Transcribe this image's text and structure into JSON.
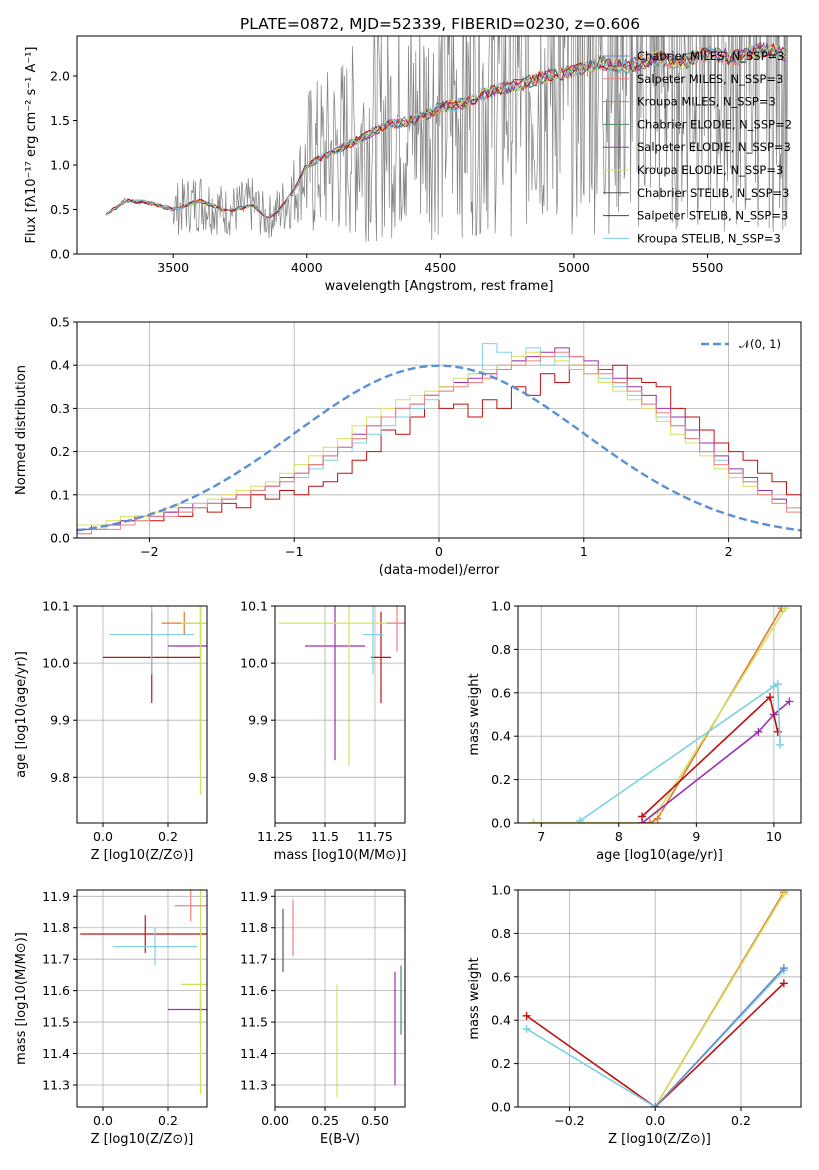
{
  "figure": {
    "title": "PLATE=0872, MJD=52339, FIBERID=0230, z=0.606"
  },
  "chart_data": [
    {
      "id": "spectrum",
      "type": "line",
      "xlabel": "wavelength [Angstrom, rest frame]",
      "ylabel": "Flux [fλ10⁻¹⁷ erg cm⁻² s⁻¹ A⁻¹]",
      "xlim": [
        3140,
        5850
      ],
      "ylim": [
        0,
        2.45
      ],
      "xticks": [
        3500,
        4000,
        4500,
        5000,
        5500
      ],
      "yticks": [
        0.0,
        0.5,
        1.0,
        1.5,
        2.0
      ],
      "grid": false,
      "legend_position": "top-right",
      "data_line": {
        "color": "#808080",
        "x_start": 3250,
        "x_end": 5800,
        "note_style": "noisy observed spectrum"
      },
      "model_continuum": {
        "x": [
          3250,
          3300,
          3320,
          3400,
          3500,
          3600,
          3700,
          3800,
          3850,
          3900,
          3950,
          4000,
          4100,
          4200,
          4300,
          4400,
          4500,
          4600,
          4700,
          4800,
          4900,
          5000,
          5100,
          5200,
          5300,
          5400,
          5500,
          5600,
          5700,
          5800
        ],
        "y": [
          0.45,
          0.55,
          0.6,
          0.58,
          0.5,
          0.6,
          0.48,
          0.55,
          0.4,
          0.5,
          0.7,
          1.0,
          1.15,
          1.3,
          1.45,
          1.5,
          1.65,
          1.7,
          1.85,
          1.9,
          2.0,
          2.05,
          2.15,
          2.1,
          2.2,
          2.15,
          2.25,
          2.2,
          2.3,
          2.25
        ]
      },
      "series": [
        {
          "name": "Chabrier MILES, N_SSP=3",
          "color": "#6b8cc7"
        },
        {
          "name": "Salpeter MILES, N_SSP=3",
          "color": "#f08080"
        },
        {
          "name": "Kroupa MILES, N_SSP=3",
          "color": "#e07a30"
        },
        {
          "name": "Chabrier ELODIE, N_SSP=2",
          "color": "#4a8c5c"
        },
        {
          "name": "Salpeter ELODIE, N_SSP=3",
          "color": "#9b30b0"
        },
        {
          "name": "Kroupa ELODIE, N_SSP=3",
          "color": "#d4e060"
        },
        {
          "name": "Chabrier STELIB, N_SSP=3",
          "color": "#555555"
        },
        {
          "name": "Salpeter STELIB, N_SSP=3",
          "color": "#c01010"
        },
        {
          "name": "Kroupa STELIB, N_SSP=3",
          "color": "#7fd0e0"
        }
      ]
    },
    {
      "id": "residuals",
      "type": "histogram",
      "xlabel": "(data-model)/error",
      "ylabel": "Normed distribution",
      "xlim": [
        -2.5,
        2.5
      ],
      "ylim": [
        0,
        0.5
      ],
      "xticks": [
        -2,
        -1,
        0,
        1,
        2
      ],
      "yticks": [
        0.0,
        0.1,
        0.2,
        0.3,
        0.4,
        0.5
      ],
      "grid": true,
      "legend_position": "top-right",
      "gaussian": {
        "name": "𝒩(0, 1)",
        "mean": 0,
        "sigma": 1,
        "color": "#5b8fd6"
      },
      "bin_width": 0.1,
      "bin_start": -2.5,
      "hist_series": [
        {
          "color": "#c01010",
          "values": [
            0.02,
            0.02,
            0.03,
            0.04,
            0.05,
            0.04,
            0.06,
            0.05,
            0.07,
            0.06,
            0.08,
            0.07,
            0.1,
            0.09,
            0.11,
            0.1,
            0.12,
            0.13,
            0.15,
            0.18,
            0.2,
            0.25,
            0.24,
            0.28,
            0.33,
            0.3,
            0.31,
            0.28,
            0.32,
            0.3,
            0.35,
            0.33,
            0.38,
            0.36,
            0.4,
            0.38,
            0.39,
            0.4,
            0.37,
            0.36,
            0.35,
            0.3,
            0.28,
            0.25,
            0.22,
            0.2,
            0.18,
            0.15,
            0.13,
            0.1,
            0.08
          ]
        },
        {
          "color": "#7fd0e0",
          "values": [
            0.01,
            0.02,
            0.03,
            0.04,
            0.04,
            0.05,
            0.06,
            0.06,
            0.07,
            0.08,
            0.09,
            0.1,
            0.11,
            0.12,
            0.13,
            0.14,
            0.16,
            0.18,
            0.2,
            0.22,
            0.24,
            0.26,
            0.28,
            0.3,
            0.32,
            0.34,
            0.36,
            0.38,
            0.45,
            0.43,
            0.41,
            0.44,
            0.4,
            0.42,
            0.39,
            0.4,
            0.37,
            0.35,
            0.33,
            0.31,
            0.28,
            0.26,
            0.23,
            0.2,
            0.18,
            0.15,
            0.13,
            0.11,
            0.09,
            0.07,
            0.05
          ]
        },
        {
          "color": "#9b30b0",
          "values": [
            0.02,
            0.03,
            0.03,
            0.04,
            0.05,
            0.05,
            0.06,
            0.07,
            0.08,
            0.08,
            0.09,
            0.1,
            0.11,
            0.12,
            0.14,
            0.15,
            0.17,
            0.19,
            0.21,
            0.24,
            0.26,
            0.28,
            0.3,
            0.31,
            0.33,
            0.35,
            0.36,
            0.37,
            0.38,
            0.4,
            0.41,
            0.42,
            0.43,
            0.44,
            0.42,
            0.41,
            0.39,
            0.37,
            0.35,
            0.33,
            0.3,
            0.28,
            0.25,
            0.22,
            0.19,
            0.16,
            0.14,
            0.11,
            0.09,
            0.07,
            0.06
          ]
        },
        {
          "color": "#d4e060",
          "values": [
            0.03,
            0.03,
            0.04,
            0.05,
            0.05,
            0.06,
            0.07,
            0.08,
            0.08,
            0.09,
            0.1,
            0.11,
            0.12,
            0.13,
            0.15,
            0.17,
            0.19,
            0.21,
            0.23,
            0.26,
            0.28,
            0.3,
            0.32,
            0.33,
            0.34,
            0.35,
            0.37,
            0.38,
            0.39,
            0.4,
            0.42,
            0.43,
            0.42,
            0.41,
            0.4,
            0.38,
            0.36,
            0.34,
            0.32,
            0.3,
            0.27,
            0.24,
            0.22,
            0.19,
            0.16,
            0.14,
            0.12,
            0.1,
            0.08,
            0.07,
            0.05
          ]
        },
        {
          "color": "#f08080",
          "values": [
            0.01,
            0.02,
            0.02,
            0.03,
            0.04,
            0.05,
            0.05,
            0.06,
            0.07,
            0.08,
            0.09,
            0.1,
            0.11,
            0.12,
            0.13,
            0.15,
            0.17,
            0.19,
            0.21,
            0.23,
            0.26,
            0.28,
            0.3,
            0.31,
            0.33,
            0.34,
            0.35,
            0.36,
            0.37,
            0.39,
            0.4,
            0.41,
            0.42,
            0.43,
            0.42,
            0.4,
            0.38,
            0.36,
            0.34,
            0.31,
            0.29,
            0.26,
            0.23,
            0.2,
            0.17,
            0.15,
            0.13,
            0.1,
            0.08,
            0.06,
            0.05
          ]
        }
      ]
    },
    {
      "id": "age-vs-Z",
      "type": "scatter",
      "xlabel": "Z [log10(Z/Z⊙)]",
      "ylabel": "age  [log10(age/yr)]",
      "xlim": [
        -0.08,
        0.32
      ],
      "ylim": [
        9.72,
        10.1
      ],
      "xticks": [
        0.0,
        0.2
      ],
      "yticks": [
        9.8,
        9.9,
        10.0,
        10.1
      ],
      "grid": true,
      "points": [
        {
          "color": "#c01010",
          "x": 0.15,
          "y": 10.01,
          "xerr": 0.15,
          "yerr": 0.08
        },
        {
          "color": "#7fd0e0",
          "x": 0.15,
          "y": 10.05,
          "xerr": 0.13,
          "yerr": 0.07
        },
        {
          "color": "#9b30b0",
          "x": 0.3,
          "y": 10.03,
          "xerr": 0.1,
          "yerr": 0.2
        },
        {
          "color": "#e07a30",
          "x": 0.25,
          "y": 10.07,
          "xerr": 0.07,
          "yerr": 0.02
        },
        {
          "color": "#d4e060",
          "x": 0.3,
          "y": 10.07,
          "xerr": 0.06,
          "yerr": 0.3
        }
      ]
    },
    {
      "id": "age-vs-mass",
      "type": "scatter",
      "xlabel": "mass [log10(M/M⊙)]",
      "ylabel": "",
      "xlim": [
        11.25,
        11.9
      ],
      "ylim": [
        9.72,
        10.1
      ],
      "xticks": [
        11.25,
        11.5,
        11.75
      ],
      "yticks": [
        9.8,
        9.9,
        10.0,
        10.1
      ],
      "grid": true,
      "points": [
        {
          "color": "#c01010",
          "x": 11.78,
          "y": 10.01,
          "xerr": 0.05,
          "yerr": 0.08
        },
        {
          "color": "#7fd0e0",
          "x": 11.74,
          "y": 10.05,
          "xerr": 0.05,
          "yerr": 0.07
        },
        {
          "color": "#9b30b0",
          "x": 11.55,
          "y": 10.03,
          "xerr": 0.15,
          "yerr": 0.2
        },
        {
          "color": "#d4e060",
          "x": 11.62,
          "y": 10.07,
          "xerr": 0.35,
          "yerr": 0.25
        },
        {
          "color": "#f08080",
          "x": 11.86,
          "y": 10.07,
          "xerr": 0.05,
          "yerr": 0.05
        }
      ]
    },
    {
      "id": "weight-vs-age",
      "type": "line",
      "xlabel": "age  [log10(age/yr)]",
      "ylabel": "mass weight",
      "xlim": [
        6.7,
        10.35
      ],
      "ylim": [
        0,
        1
      ],
      "xticks": [
        7,
        8,
        9,
        10
      ],
      "yticks": [
        0.0,
        0.2,
        0.4,
        0.6,
        0.8,
        1.0
      ],
      "grid": true,
      "series": [
        {
          "color": "#e07a30",
          "x": [
            6.9,
            8.4,
            8.5,
            10.1
          ],
          "y": [
            0.0,
            0.0,
            0.02,
            0.99
          ]
        },
        {
          "color": "#d4e060",
          "x": [
            6.9,
            8.3,
            8.5,
            10.15
          ],
          "y": [
            0.0,
            0.0,
            0.05,
            0.99
          ]
        },
        {
          "color": "#9b30b0",
          "x": [
            8.3,
            9.8,
            10.0,
            10.2
          ],
          "y": [
            0.0,
            0.42,
            0.5,
            0.56
          ]
        },
        {
          "color": "#c01010",
          "x": [
            8.3,
            9.95,
            10.05
          ],
          "y": [
            0.03,
            0.58,
            0.42
          ]
        },
        {
          "color": "#7fd0e0",
          "x": [
            7.5,
            10.0,
            10.05,
            10.08
          ],
          "y": [
            0.01,
            0.63,
            0.64,
            0.36
          ]
        }
      ]
    },
    {
      "id": "mass-vs-Z",
      "type": "scatter",
      "xlabel": "Z [log10(Z/Z⊙)]",
      "ylabel": "mass [log10(M/M⊙)]",
      "xlim": [
        -0.08,
        0.32
      ],
      "ylim": [
        11.23,
        11.92
      ],
      "xticks": [
        0.0,
        0.2
      ],
      "yticks": [
        11.3,
        11.4,
        11.5,
        11.6,
        11.7,
        11.8,
        11.9
      ],
      "grid": true,
      "points": [
        {
          "color": "#c01010",
          "x": 0.13,
          "y": 11.78,
          "xerr": 0.2,
          "yerr": 0.06
        },
        {
          "color": "#7fd0e0",
          "x": 0.16,
          "y": 11.74,
          "xerr": 0.13,
          "yerr": 0.06
        },
        {
          "color": "#9b30b0",
          "x": 0.3,
          "y": 11.54,
          "xerr": 0.1,
          "yerr": 0.05
        },
        {
          "color": "#d4e060",
          "x": 0.3,
          "y": 11.62,
          "xerr": 0.06,
          "yerr": 0.35
        },
        {
          "color": "#f08080",
          "x": 0.27,
          "y": 11.87,
          "xerr": 0.05,
          "yerr": 0.05
        }
      ]
    },
    {
      "id": "mass-vs-EBV",
      "type": "scatter",
      "xlabel": "E(B-V)",
      "ylabel": "",
      "xlim": [
        0.0,
        0.65
      ],
      "ylim": [
        11.23,
        11.92
      ],
      "xticks": [
        0.0,
        0.25,
        0.5
      ],
      "yticks": [
        11.3,
        11.4,
        11.5,
        11.6,
        11.7,
        11.8,
        11.9
      ],
      "grid": true,
      "points": [
        {
          "color": "#d4e060",
          "x": 0.31,
          "y": 11.44,
          "xerr": 0.0,
          "yerr": 0.18
        },
        {
          "color": "#9b30b0",
          "x": 0.6,
          "y": 11.48,
          "xerr": 0.0,
          "yerr": 0.18
        },
        {
          "color": "#4a8c5c",
          "x": 0.63,
          "y": 11.57,
          "xerr": 0.0,
          "yerr": 0.11
        },
        {
          "color": "#f08080",
          "x": 0.09,
          "y": 11.8,
          "xerr": 0.0,
          "yerr": 0.09
        },
        {
          "color": "#555555",
          "x": 0.04,
          "y": 11.76,
          "xerr": 0.0,
          "yerr": 0.1
        }
      ]
    },
    {
      "id": "weight-vs-Z",
      "type": "line",
      "xlabel": "Z [log10(Z/Z⊙)]",
      "ylabel": "mass weight",
      "xlim": [
        -0.32,
        0.34
      ],
      "ylim": [
        0,
        1
      ],
      "xticks": [
        -0.2,
        0.0,
        0.2
      ],
      "yticks": [
        0.0,
        0.2,
        0.4,
        0.6,
        0.8,
        1.0
      ],
      "grid": true,
      "series": [
        {
          "color": "#e07a30",
          "x": [
            0.0,
            0.3
          ],
          "y": [
            0.0,
            0.99
          ]
        },
        {
          "color": "#d4e060",
          "x": [
            0.0,
            0.3
          ],
          "y": [
            0.0,
            0.98
          ]
        },
        {
          "color": "#c01010",
          "x": [
            -0.3,
            0.0,
            0.3
          ],
          "y": [
            0.42,
            0.0,
            0.57
          ]
        },
        {
          "color": "#7fd0e0",
          "x": [
            -0.3,
            0.0,
            0.3
          ],
          "y": [
            0.36,
            0.0,
            0.63
          ]
        },
        {
          "color": "#6b8cc7",
          "x": [
            0.0,
            0.3
          ],
          "y": [
            0.0,
            0.64
          ]
        }
      ]
    }
  ]
}
